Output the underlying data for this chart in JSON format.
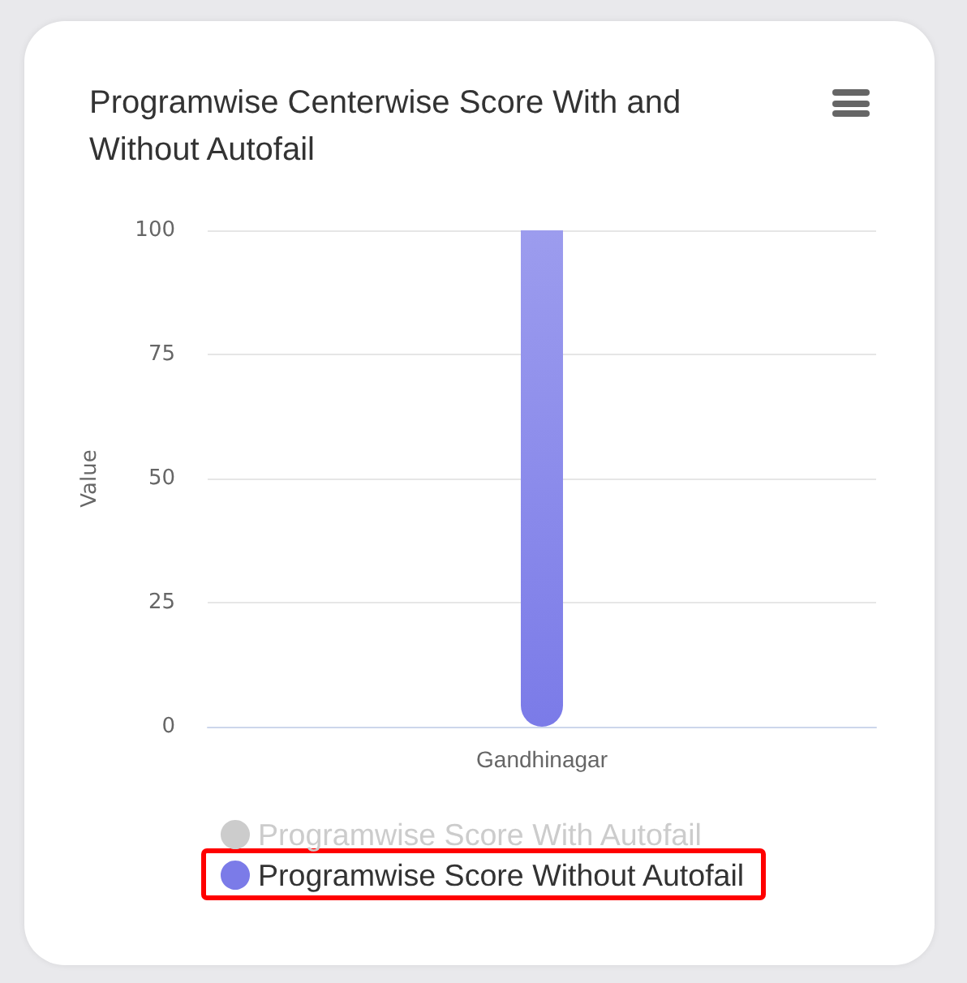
{
  "chart_data": {
    "type": "bar",
    "title": "Programwise Centerwise Score With and Without Autofail",
    "ylabel": "Value",
    "categories": [
      "Gandhinagar"
    ],
    "series": [
      {
        "name": "Programwise Score With Autofail",
        "color": "#cccccc",
        "values": [
          null
        ]
      },
      {
        "name": "Programwise Score Without Autofail",
        "color": "#7b7be8",
        "values": [
          100
        ]
      }
    ],
    "ylim": [
      0,
      100
    ],
    "yticks": [
      0,
      25,
      50,
      75,
      100
    ],
    "grid": "y",
    "legend": "bottom"
  }
}
